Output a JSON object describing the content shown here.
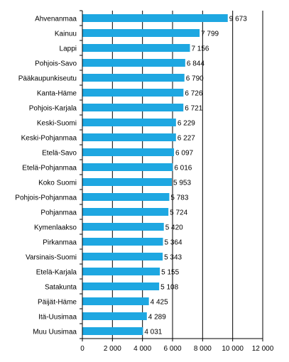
{
  "chart_data": {
    "type": "bar",
    "orientation": "horizontal",
    "categories": [
      "Ahvenanmaa",
      "Kainuu",
      "Lappi",
      "Pohjois-Savo",
      "Pääkaupunkiseutu",
      "Kanta-Häme",
      "Pohjois-Karjala",
      "Keski-Suomi",
      "Keski-Pohjanmaa",
      "Etelä-Savo",
      "Etelä-Pohjanmaa",
      "Koko Suomi",
      "Pohjois-Pohjanmaa",
      "Pohjanmaa",
      "Kymenlaakso",
      "Pirkanmaa",
      "Varsinais-Suomi",
      "Etelä-Karjala",
      "Satakunta",
      "Päijät-Häme",
      "Itä-Uusimaa",
      "Muu Uusimaa"
    ],
    "values": [
      9673,
      7799,
      7156,
      6844,
      6790,
      6726,
      6721,
      6229,
      6227,
      6097,
      6016,
      5953,
      5783,
      5724,
      5420,
      5364,
      5343,
      5155,
      5108,
      4425,
      4289,
      4031
    ],
    "value_labels": [
      "9 673",
      "7 799",
      "7 156",
      "6 844",
      "6 790",
      "6 726",
      "6 721",
      "6 229",
      "6 227",
      "6 097",
      "6 016",
      "5 953",
      "5 783",
      "5 724",
      "5 420",
      "5 364",
      "5 343",
      "5 155",
      "5 108",
      "4 425",
      "4 289",
      "4 031"
    ],
    "xlim": [
      0,
      12000
    ],
    "xticks": [
      0,
      2000,
      4000,
      6000,
      8000,
      10000,
      12000
    ],
    "xtick_labels": [
      "0",
      "2 000",
      "4 000",
      "6 000",
      "8 000",
      "10 000",
      "12 000"
    ],
    "title": "",
    "xlabel": "",
    "ylabel": "",
    "grid": "vertical",
    "bar_color": "#1ea7e1",
    "grid_color": "#000000"
  }
}
